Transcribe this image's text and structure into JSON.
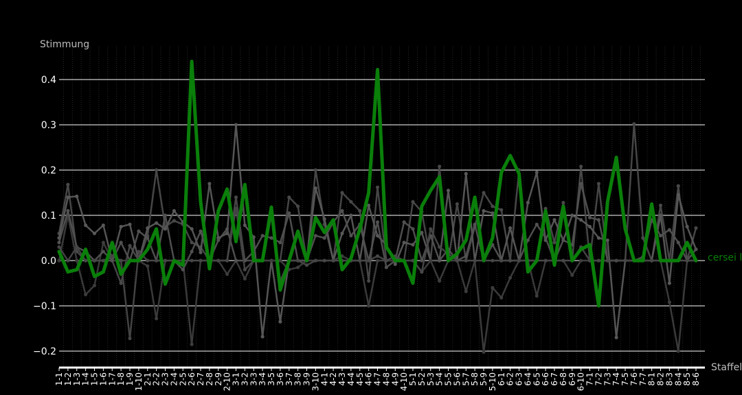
{
  "chart_data": {
    "type": "line",
    "ylabel": "Stimmung",
    "xlabel": "Staffel",
    "ylim": [
      -0.235,
      0.475
    ],
    "yticks": [
      -0.2,
      -0.1,
      0.0,
      0.1,
      0.2,
      0.3,
      0.4
    ],
    "ytick_labels": [
      "−0.2",
      "−0.1",
      "0.0",
      "0.1",
      "0.2",
      "0.3",
      "0.4"
    ],
    "grid": "horizontal",
    "categories": [
      "1-1",
      "1-2",
      "1-3",
      "1-4",
      "1-5",
      "1-6",
      "1-7",
      "1-8",
      "1-9",
      "1-10",
      "2-1",
      "2-2",
      "2-3",
      "2-4",
      "2-5",
      "2-6",
      "2-7",
      "2-8",
      "2-9",
      "2-10",
      "3-1",
      "3-2",
      "3-3",
      "3-4",
      "3-5",
      "3-6",
      "3-7",
      "3-8",
      "3-9",
      "3-10",
      "4-1",
      "4-2",
      "4-3",
      "4-4",
      "4-5",
      "4-6",
      "4-7",
      "4-8",
      "4-9",
      "4-10",
      "5-1",
      "5-2",
      "5-3",
      "5-4",
      "5-5",
      "5-6",
      "5-7",
      "5-8",
      "5-9",
      "5-10",
      "6-1",
      "6-2",
      "6-3",
      "6-4",
      "6-5",
      "6-6",
      "6-7",
      "6-8",
      "6-9",
      "6-10",
      "7-1",
      "7-2",
      "7-3",
      "7-4",
      "7-5",
      "7-6",
      "7-7",
      "8-1",
      "8-2",
      "8-3",
      "8-4",
      "8-5",
      "8-6"
    ],
    "xtick_labels": [
      "1-1",
      "1-2",
      "1-3",
      "1-4",
      "1-5",
      "1-6",
      "1-7",
      "1-8",
      "1-9",
      "1-10",
      "2-1",
      "2-2",
      "2-3",
      "2-4",
      "2-5",
      "2-6",
      "2-7",
      "2-8",
      "2-9",
      "2-10",
      "3-1",
      "3-2",
      "3-3",
      "3-4",
      "3-5",
      "3-6",
      "3-7",
      "3-8",
      "3-9",
      "3-10",
      "4-1",
      "4-2",
      "4-3",
      "4-4",
      "4-5",
      "4-6",
      "4-7",
      "4-8",
      "4-9",
      "4-10",
      "5-1",
      "5-2",
      "5-3",
      "5-4",
      "5-5",
      "5-6",
      "5-7",
      "5-8",
      "5-9",
      "5-10",
      "6-1",
      "6-2",
      "6-3",
      "6-4",
      "6-5",
      "6-6",
      "6-7",
      "6-8",
      "6-9",
      "6-10",
      "7-1",
      "7-2",
      "7-3",
      "7-4",
      "7-5",
      "7-6",
      "7-7",
      "8-1",
      "8-2",
      "8-3",
      "8-4",
      "8-5",
      "8-6"
    ],
    "highlight": {
      "name": "cersei l",
      "color": "#0a7f0a",
      "values": [
        0.02,
        -0.025,
        -0.02,
        0.025,
        -0.035,
        -0.025,
        0.04,
        -0.03,
        0.0,
        0.0,
        0.025,
        0.07,
        -0.052,
        0.0,
        -0.01,
        0.44,
        0.13,
        -0.018,
        0.11,
        0.158,
        0.042,
        0.168,
        0.0,
        0.0,
        0.118,
        -0.065,
        0.0,
        0.065,
        0.0,
        0.095,
        0.062,
        0.09,
        -0.02,
        0.005,
        0.07,
        0.15,
        0.422,
        0.03,
        0.0,
        0.0,
        -0.05,
        0.12,
        0.155,
        0.185,
        0.0,
        0.015,
        0.045,
        0.14,
        0.0,
        0.05,
        0.195,
        0.232,
        0.192,
        -0.025,
        0.0,
        0.11,
        -0.01,
        0.12,
        0.0,
        0.025,
        0.035,
        -0.1,
        0.13,
        0.228,
        0.07,
        0.0,
        0.0,
        0.125,
        0.0,
        0.0,
        0.0,
        0.04,
        0.0
      ]
    },
    "background_series": [
      {
        "color": "#4a4a4a",
        "values": [
          0.06,
          0.168,
          0.02,
          0.0,
          0.0,
          0.0,
          0.0,
          -0.05,
          0.033,
          0.0,
          0.055,
          0.2,
          0.075,
          0.088,
          0.08,
          0.04,
          0.03,
          0.0,
          0.0,
          0.0,
          0.14,
          0.0,
          0.0,
          0.0,
          0.0,
          0.0,
          0.14,
          0.12,
          0.0,
          0.2,
          0.08,
          0.0,
          0.15,
          0.13,
          0.11,
          -0.045,
          0.162,
          0.0,
          0.0,
          0.0,
          0.13,
          0.108,
          0.0,
          0.208,
          0.0,
          0.125,
          0.0,
          0.075,
          0.15,
          0.12,
          0.112,
          0.0,
          0.2,
          0.0,
          0.0,
          0.115,
          0.04,
          0.128,
          0.0,
          0.208,
          0.0,
          0.17,
          0.0,
          0.0,
          0.0,
          0.302,
          0.05,
          0.0,
          0.122,
          0.0,
          0.165,
          0.0,
          0.072
        ]
      },
      {
        "color": "#5a5a5a",
        "values": [
          0.05,
          0.14,
          0.142,
          0.078,
          0.06,
          0.078,
          0.0,
          0.075,
          0.08,
          0.0,
          0.072,
          0.083,
          0.07,
          0.11,
          0.085,
          0.07,
          0.018,
          0.17,
          0.05,
          0.06,
          0.3,
          0.078,
          0.052,
          -0.168,
          0.0,
          -0.135,
          0.0,
          0.0,
          0.0,
          0.16,
          0.092,
          0.0,
          0.06,
          0.1,
          0.0,
          0.122,
          0.055,
          0.035,
          -0.008,
          0.04,
          0.035,
          0.062,
          0.0,
          0.0,
          0.155,
          0.0,
          0.192,
          0.0,
          0.11,
          0.105,
          0.0,
          0.072,
          0.0,
          0.128,
          0.195,
          0.045,
          0.09,
          0.045,
          0.1,
          0.09,
          0.075,
          0.05,
          0.045,
          -0.17,
          0.0,
          0.0,
          0.0,
          0.0,
          0.1,
          -0.05,
          0.145,
          0.075,
          0.025
        ]
      },
      {
        "color": "#3d3d3d",
        "values": [
          0.0,
          0.1,
          0.0,
          -0.075,
          -0.055,
          0.04,
          0.0,
          0.0,
          0.0,
          0.0,
          -0.012,
          -0.128,
          0.0,
          0.0,
          0.0,
          -0.185,
          0.0,
          0.0,
          0.0,
          -0.03,
          0.0,
          -0.04,
          0.0,
          0.0,
          0.0,
          0.0,
          -0.02,
          -0.015,
          0.0,
          0.0,
          0.0,
          0.0,
          0.01,
          0.0,
          0.0,
          -0.1,
          0.0,
          0.0,
          0.0,
          0.0,
          0.0,
          -0.025,
          0.0,
          -0.045,
          0.0,
          0.0,
          -0.068,
          0.0,
          -0.202,
          -0.06,
          -0.082,
          -0.038,
          0.0,
          0.0,
          -0.078,
          0.0,
          0.0,
          0.0,
          -0.032,
          0.0,
          0.0,
          0.0,
          0.0,
          0.0,
          0.0,
          0.0,
          0.0,
          0.0,
          0.0,
          -0.092,
          -0.2,
          0.0,
          0.0
        ]
      },
      {
        "color": "#525252",
        "values": [
          0.04,
          0.11,
          0.03,
          0.02,
          0.0,
          0.02,
          0.0,
          0.04,
          0.0,
          0.065,
          0.05,
          0.0,
          0.1,
          0.0,
          -0.02,
          0.02,
          0.065,
          0.0,
          0.045,
          0.07,
          0.0,
          0.0,
          0.02,
          0.055,
          0.05,
          0.04,
          0.105,
          0.0,
          0.0,
          0.055,
          0.05,
          0.085,
          0.11,
          0.055,
          0.08,
          0.0,
          0.085,
          -0.015,
          0.0,
          0.085,
          0.07,
          0.0,
          0.055,
          0.0,
          0.025,
          0.0,
          0.01,
          0.08,
          0.0,
          0.035,
          0.0,
          0.0,
          0.0,
          0.045,
          0.08,
          0.05,
          0.0,
          0.045,
          0.035,
          0.17,
          0.095,
          0.09,
          0.0,
          0.0,
          0.0,
          0.0,
          0.008,
          0.09,
          0.055,
          0.068,
          0.04,
          0.0,
          0.025
        ]
      },
      {
        "color": "#474747",
        "values": [
          0.03,
          0.0,
          0.03,
          0.0,
          0.0,
          0.0,
          0.01,
          0.0,
          -0.172,
          0.02,
          0.0,
          0.0,
          0.0,
          0.0,
          0.0,
          0.0,
          0.0,
          0.0,
          0.0,
          0.0,
          0.115,
          -0.02,
          0.0,
          0.0,
          0.1,
          -0.045,
          0.0,
          0.0,
          -0.01,
          0.0,
          0.0,
          0.0,
          0.0,
          0.0,
          0.0,
          0.0,
          0.01,
          0.0,
          0.01,
          0.0,
          0.0,
          -0.025,
          0.07,
          0.03,
          0.015,
          0.0,
          0.0,
          0.0,
          0.0,
          0.0,
          0.0,
          0.0,
          0.0,
          0.0,
          0.0,
          0.0,
          0.0,
          0.0,
          0.0,
          0.03,
          0.0,
          0.0,
          0.0,
          0.0,
          0.0,
          0.0,
          0.0,
          0.0,
          0.0,
          0.0,
          0.0,
          0.0,
          0.0
        ]
      }
    ]
  }
}
